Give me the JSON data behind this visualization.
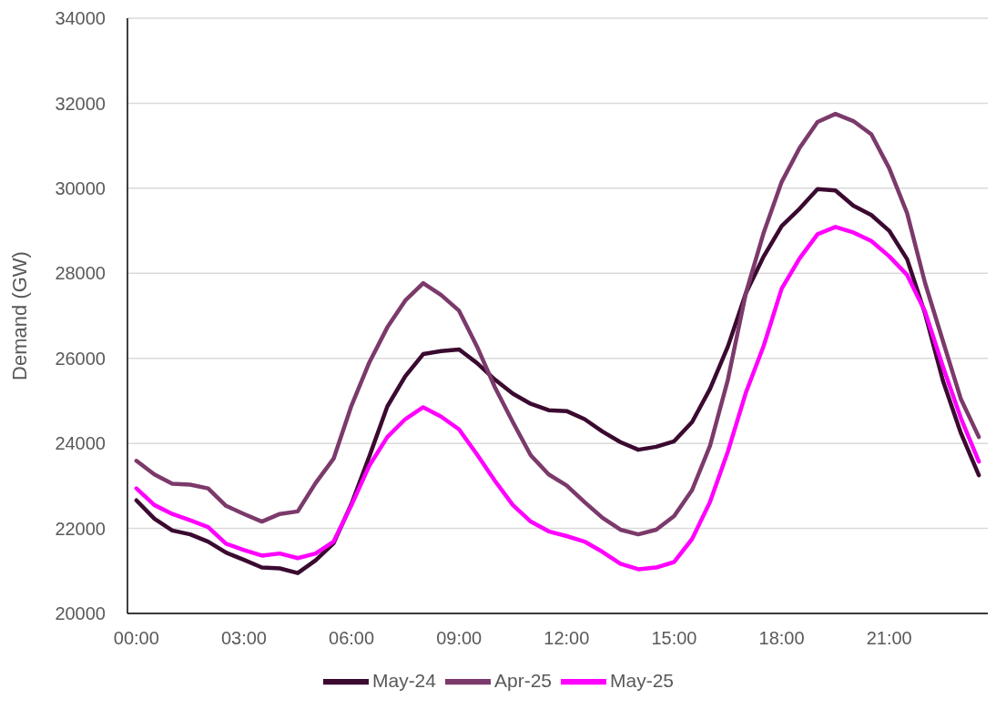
{
  "chart_data": {
    "type": "line",
    "ylabel": "Demand (GW)",
    "x": [
      0,
      0.5,
      1,
      1.5,
      2,
      2.5,
      3,
      3.5,
      4,
      4.5,
      5,
      5.5,
      6,
      6.5,
      7,
      7.5,
      8,
      8.5,
      9,
      9.5,
      10,
      10.5,
      11,
      11.5,
      12,
      12.5,
      13,
      13.5,
      14,
      14.5,
      15,
      15.5,
      16,
      16.5,
      17,
      17.5,
      18,
      18.5,
      19,
      19.5,
      20,
      20.5,
      21,
      21.5,
      22,
      22.5,
      23,
      23.5
    ],
    "xlim": [
      -0.25,
      23.75
    ],
    "xticks": [
      {
        "value": 0,
        "label": "00:00"
      },
      {
        "value": 3,
        "label": "03:00"
      },
      {
        "value": 6,
        "label": "06:00"
      },
      {
        "value": 9,
        "label": "09:00"
      },
      {
        "value": 12,
        "label": "12:00"
      },
      {
        "value": 15,
        "label": "15:00"
      },
      {
        "value": 18,
        "label": "18:00"
      },
      {
        "value": 21,
        "label": "21:00"
      }
    ],
    "ylim": [
      20000,
      34000
    ],
    "yticks": [
      20000,
      22000,
      24000,
      26000,
      28000,
      30000,
      32000,
      34000
    ],
    "grid": "y",
    "legend": "bottom",
    "marker": "none",
    "line_style": "solid",
    "series": [
      {
        "name": "May-24",
        "color": "#3b0a30",
        "values": [
          22660,
          22230,
          21950,
          21860,
          21690,
          21430,
          21260,
          21080,
          21060,
          20950,
          21250,
          21650,
          22580,
          23700,
          24870,
          25580,
          26100,
          26170,
          26210,
          25890,
          25500,
          25170,
          24930,
          24780,
          24760,
          24570,
          24280,
          24030,
          23850,
          23920,
          24050,
          24500,
          25280,
          26280,
          27530,
          28400,
          29110,
          29520,
          29980,
          29950,
          29590,
          29370,
          29000,
          28330,
          27050,
          25470,
          24240,
          23250
        ]
      },
      {
        "name": "Apr-25",
        "color": "#7b3a6b",
        "values": [
          23590,
          23270,
          23050,
          23030,
          22940,
          22530,
          22340,
          22160,
          22340,
          22400,
          23070,
          23640,
          24890,
          25910,
          26730,
          27360,
          27770,
          27490,
          27120,
          26280,
          25320,
          24500,
          23720,
          23270,
          23010,
          22620,
          22250,
          21970,
          21860,
          21970,
          22290,
          22900,
          23940,
          25500,
          27530,
          28960,
          30150,
          30950,
          31560,
          31750,
          31580,
          31270,
          30470,
          29410,
          27770,
          26400,
          25040,
          24150
        ]
      },
      {
        "name": "May-25",
        "color": "#ff00ff",
        "values": [
          22940,
          22550,
          22340,
          22190,
          22030,
          21640,
          21490,
          21360,
          21410,
          21300,
          21410,
          21690,
          22550,
          23480,
          24150,
          24570,
          24850,
          24630,
          24330,
          23740,
          23120,
          22550,
          22160,
          21930,
          21820,
          21690,
          21450,
          21170,
          21040,
          21080,
          21210,
          21750,
          22620,
          23810,
          25190,
          26300,
          27640,
          28350,
          28920,
          29090,
          28960,
          28760,
          28400,
          27960,
          27100,
          25800,
          24590,
          23570
        ]
      }
    ]
  }
}
